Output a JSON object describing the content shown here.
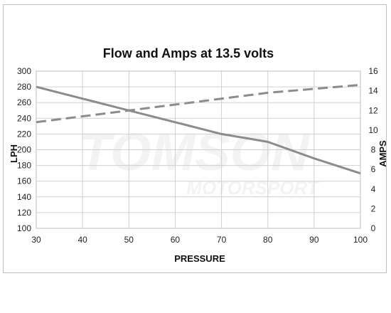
{
  "chart_data": {
    "type": "line",
    "title": "Flow and Amps at 13.5 volts",
    "xlabel": "PRESSURE",
    "ylabel_left": "LPH",
    "ylabel_right": "AMPS",
    "xlim": [
      30,
      100
    ],
    "ylim_left": [
      100,
      300
    ],
    "ylim_right": [
      0,
      16
    ],
    "x_ticks": [
      "30",
      "40",
      "50",
      "60",
      "70",
      "80",
      "90",
      "100"
    ],
    "y_left_ticks": [
      "100",
      "120",
      "140",
      "160",
      "180",
      "200",
      "220",
      "240",
      "260",
      "280",
      "300"
    ],
    "y_right_ticks": [
      "0",
      "2",
      "4",
      "6",
      "8",
      "10",
      "12",
      "14",
      "16"
    ],
    "grid": true,
    "series": [
      {
        "axis": "left",
        "style": "solid",
        "color": "#8c8c8c",
        "x": [
          30,
          40,
          50,
          60,
          70,
          80,
          90,
          100
        ],
        "y": [
          280,
          265,
          250,
          235,
          220,
          210,
          189,
          170
        ]
      },
      {
        "axis": "right",
        "style": "dashed",
        "color": "#8c8c8c",
        "x": [
          30,
          40,
          50,
          60,
          70,
          80,
          90,
          100
        ],
        "y": [
          10.8,
          11.4,
          12.0,
          12.6,
          13.2,
          13.8,
          14.2,
          14.6
        ]
      }
    ],
    "watermark": {
      "line1": "TOMSON",
      "line2": "MOTORSPORT"
    }
  }
}
